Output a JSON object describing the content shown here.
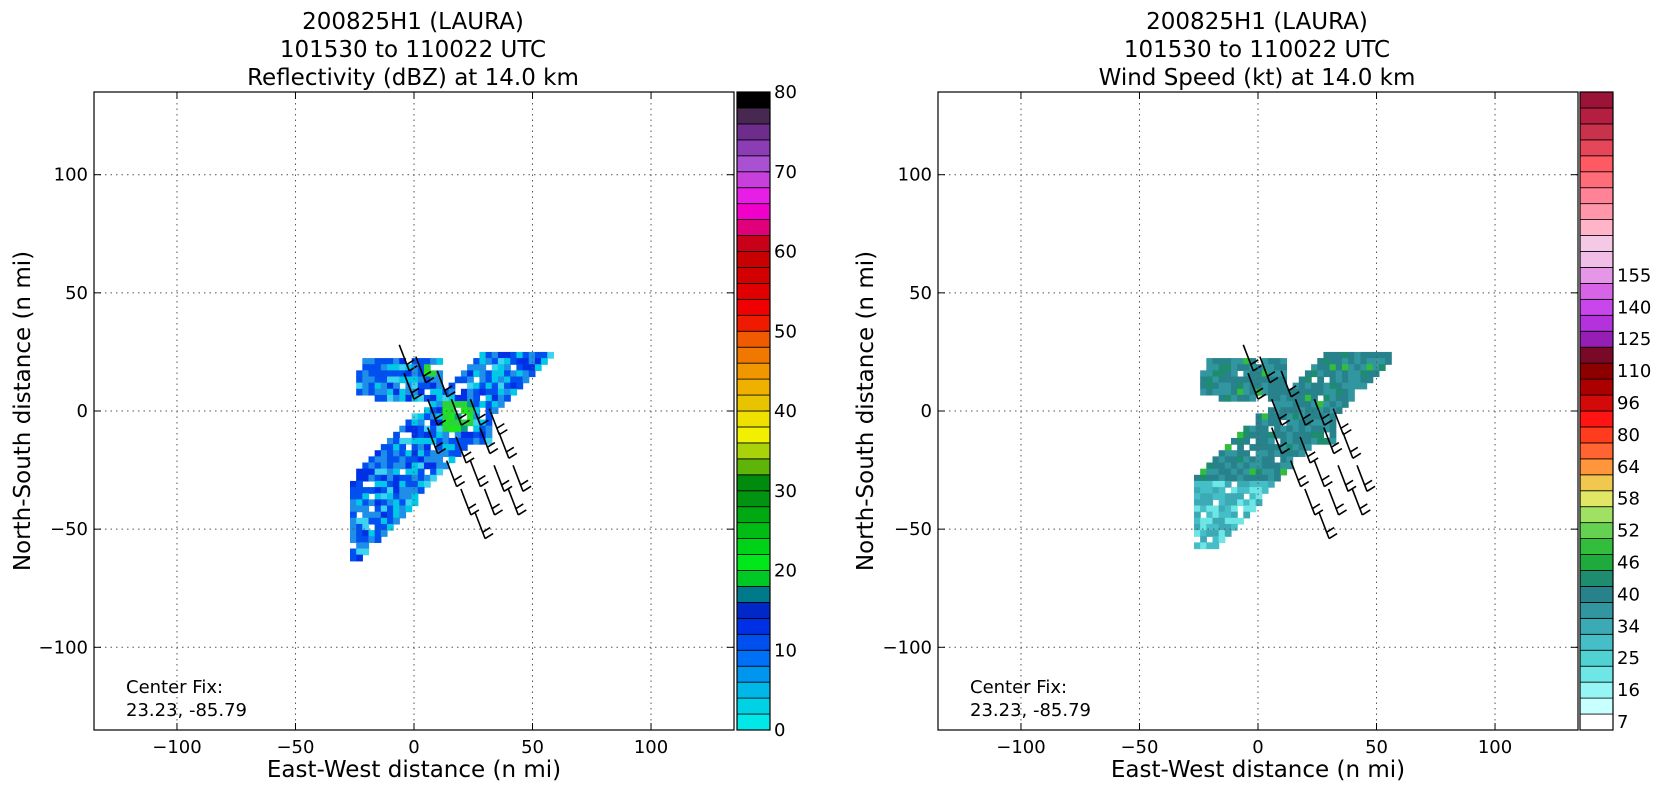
{
  "chart_data": [
    {
      "type": "heatmap",
      "title": [
        "200825H1 (LAURA)",
        "101530 to 110022 UTC",
        "Reflectivity (dBZ) at 14.0 km"
      ],
      "xlabel": "East-West distance (n mi)",
      "ylabel": "North-South distance (n mi)",
      "xlim": [
        -135,
        135
      ],
      "ylim": [
        -135,
        135
      ],
      "xticks": [
        -100,
        -50,
        0,
        50,
        100
      ],
      "yticks": [
        -100,
        -50,
        0,
        50,
        100
      ],
      "xtick_labels": [
        "−100",
        "−50",
        "0",
        "50",
        "100"
      ],
      "ytick_labels": [
        "−100",
        "−50",
        "0",
        "50",
        "100"
      ],
      "grid": true,
      "annotation": [
        "Center Fix:",
        "23.23, -85.79"
      ],
      "colorbar": {
        "min": 0,
        "max": 80,
        "step": 2.5,
        "tick_values": [
          0,
          10,
          20,
          30,
          40,
          50,
          60,
          70,
          80
        ],
        "tick_labels": [
          "0",
          "10",
          "20",
          "30",
          "40",
          "50",
          "60",
          "70",
          "80"
        ],
        "colors": [
          "#00e8e8",
          "#00d2e6",
          "#00b8e8",
          "#0096f0",
          "#0070f6",
          "#0050f0",
          "#0030e6",
          "#0028c8",
          "#007a8a",
          "#00c824",
          "#00e81c",
          "#00d218",
          "#00bc14",
          "#00a812",
          "#009410",
          "#008a0e",
          "#5fb40a",
          "#aad20a",
          "#f0f000",
          "#f0e000",
          "#e8c400",
          "#f0b000",
          "#f09600",
          "#f07800",
          "#f05a00",
          "#f01a00",
          "#f00000",
          "#e00000",
          "#d20000",
          "#c80000",
          "#c80018",
          "#e0007a",
          "#f000c8",
          "#e61ee6",
          "#c840dc",
          "#aa50d2",
          "#8c3cb4",
          "#6e2d8c",
          "#462850",
          "#000000"
        ]
      },
      "data_extent": {
        "x": [
          -27,
          62
        ],
        "y": [
          -62,
          25
        ]
      },
      "data_dbz_range": [
        0,
        20
      ]
    },
    {
      "type": "heatmap",
      "title": [
        "200825H1 (LAURA)",
        "101530 to 110022 UTC",
        "Wind Speed (kt) at 14.0 km"
      ],
      "xlabel": "East-West distance (n mi)",
      "ylabel": "North-South distance (n mi)",
      "xlim": [
        -135,
        135
      ],
      "ylim": [
        -135,
        135
      ],
      "xticks": [
        -100,
        -50,
        0,
        50,
        100
      ],
      "yticks": [
        -100,
        -50,
        0,
        50,
        100
      ],
      "xtick_labels": [
        "−100",
        "−50",
        "0",
        "50",
        "100"
      ],
      "ytick_labels": [
        "−100",
        "−50",
        "0",
        "50",
        "100"
      ],
      "grid": true,
      "annotation": [
        "Center Fix:",
        "23.23, -85.79"
      ],
      "colorbar": {
        "tick_labels": [
          "7",
          "16",
          "25",
          "34",
          "40",
          "46",
          "52",
          "58",
          "64",
          "80",
          "96",
          "110",
          "125",
          "140",
          "155"
        ],
        "tick_bin_index": [
          0,
          2,
          4,
          6,
          8,
          10,
          12,
          14,
          16,
          18,
          20,
          22,
          24,
          26,
          28
        ],
        "colors": [
          "#ffffff",
          "#c8ffff",
          "#96f5f5",
          "#6ee6e6",
          "#50d2d2",
          "#46bec8",
          "#3caab4",
          "#3296a0",
          "#28828c",
          "#1e8c6e",
          "#1eaa3c",
          "#32be3c",
          "#64d250",
          "#a0e164",
          "#e1e664",
          "#f0c850",
          "#ff963c",
          "#ff6432",
          "#ff3c1e",
          "#ff1414",
          "#d20a0a",
          "#aa0000",
          "#8c0000",
          "#780a28",
          "#961eb4",
          "#b432dc",
          "#c846eb",
          "#d764e6",
          "#e696e6",
          "#f0bee6",
          "#f5c8e6",
          "#ffb4c8",
          "#ff96aa",
          "#ff8296",
          "#ff6e78",
          "#ff5a64",
          "#e6465a",
          "#c8324b",
          "#b41e41",
          "#9b1437"
        ]
      },
      "data_extent": {
        "x": [
          -27,
          55
        ],
        "y": [
          -58,
          25
        ]
      },
      "data_kt_range": [
        16,
        40
      ]
    }
  ]
}
